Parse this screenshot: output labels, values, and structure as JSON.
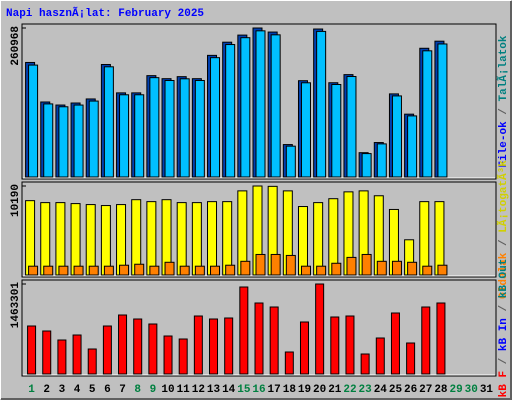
{
  "chart_data": [
    {
      "type": "bar",
      "title": "Napi hasznÃ¡lat: February 2025",
      "title_color": "#0000ff",
      "ylim": [
        0,
        260968
      ],
      "yticks": [
        260968
      ],
      "right_label": [
        {
          "text": "File-ok",
          "color": "#0000ff"
        },
        {
          "text": " / ",
          "color": "#606060"
        },
        {
          "text": "TalÃ¡latok",
          "color": "#008080"
        }
      ],
      "series": [
        {
          "color": "#0040b0",
          "values": [
            200609,
            131372,
            126046,
            129597,
            136698,
            197058,
            147350,
            147350,
            177530,
            172204,
            175755,
            172204,
            213036,
            236117,
            248544,
            260968,
            253868,
            56810,
            168654,
            259193,
            165103,
            179305,
            42607,
            60360,
            145575,
            110069,
            225463,
            237890,
            null,
            null,
            null
          ]
        },
        {
          "color": "#00c0ff",
          "values": [
            196000,
            128000,
            123000,
            126000,
            133000,
            193000,
            144000,
            144000,
            174000,
            169000,
            172000,
            169000,
            209000,
            232000,
            244000,
            256000,
            249000,
            54000,
            165000,
            255000,
            162000,
            176000,
            41000,
            58000,
            142000,
            107000,
            221000,
            233000,
            null,
            null,
            null
          ]
        }
      ]
    },
    {
      "type": "bar",
      "ylim": [
        0,
        10190
      ],
      "yticks": [
        10190
      ],
      "right_label": [
        {
          "text": "Oldalak",
          "color": "#ff8000"
        },
        {
          "text": " / ",
          "color": "#606060"
        },
        {
          "text": "LÃ¡togatÃ³k",
          "color": "#d0d000"
        }
      ],
      "series": [
        {
          "color": "#ffff00",
          "values": [
            8512,
            8288,
            8288,
            8176,
            8064,
            7952,
            8064,
            8624,
            8400,
            8624,
            8288,
            8288,
            8400,
            8400,
            9632,
            10190,
            10150,
            9632,
            7840,
            8288,
            8736,
            9520,
            9632,
            9072,
            7504,
            4032,
            8400,
            8400,
            null,
            null,
            null
          ]
        },
        {
          "color": "#ff8000",
          "values": [
            1008,
            1008,
            1008,
            1008,
            1008,
            1008,
            1120,
            1232,
            1008,
            1456,
            1008,
            1008,
            1008,
            1120,
            1568,
            2352,
            2352,
            2240,
            1008,
            1008,
            1344,
            2016,
            2352,
            1568,
            1568,
            1456,
            1008,
            1120,
            null,
            null,
            null
          ]
        }
      ]
    },
    {
      "type": "bar",
      "ylim": [
        0,
        1463301
      ],
      "yticks": [
        1463301
      ],
      "right_label": [
        {
          "text": "kB F",
          "color": "#ff0000"
        },
        {
          "text": " / ",
          "color": "#606060"
        },
        {
          "text": "kB In",
          "color": "#0000ff"
        },
        {
          "text": " / ",
          "color": "#606060"
        },
        {
          "text": "kB Out",
          "color": "#008080"
        }
      ],
      "categories": [
        "1",
        "2",
        "3",
        "4",
        "5",
        "6",
        "7",
        "8",
        "9",
        "10",
        "11",
        "12",
        "13",
        "14",
        "15",
        "16",
        "17",
        "18",
        "19",
        "20",
        "21",
        "22",
        "23",
        "24",
        "25",
        "26",
        "27",
        "28",
        "29",
        "30",
        "31"
      ],
      "category_colors": [
        "#008040",
        "#000000",
        "#000000",
        "#000000",
        "#000000",
        "#000000",
        "#000000",
        "#008040",
        "#008040",
        "#000000",
        "#000000",
        "#000000",
        "#000000",
        "#000000",
        "#008040",
        "#008040",
        "#000000",
        "#000000",
        "#000000",
        "#000000",
        "#000000",
        "#008040",
        "#008040",
        "#000000",
        "#000000",
        "#000000",
        "#000000",
        "#000000",
        "#008040",
        "#008040",
        "#000000"
      ],
      "series": [
        {
          "color": "#ff0000",
          "values": [
            780432,
            699137,
            552806,
            634101,
            406475,
            780432,
            959281,
            894245,
            812950,
            617842,
            569065,
            943022,
            894245,
            910504,
            1414533,
            1154389,
            1089353,
            357698,
            845468,
            1463301,
            926763,
            943022,
            325180,
            585324,
            991799,
            504029,
            1089353,
            1154389,
            null,
            null,
            null
          ]
        }
      ]
    }
  ]
}
